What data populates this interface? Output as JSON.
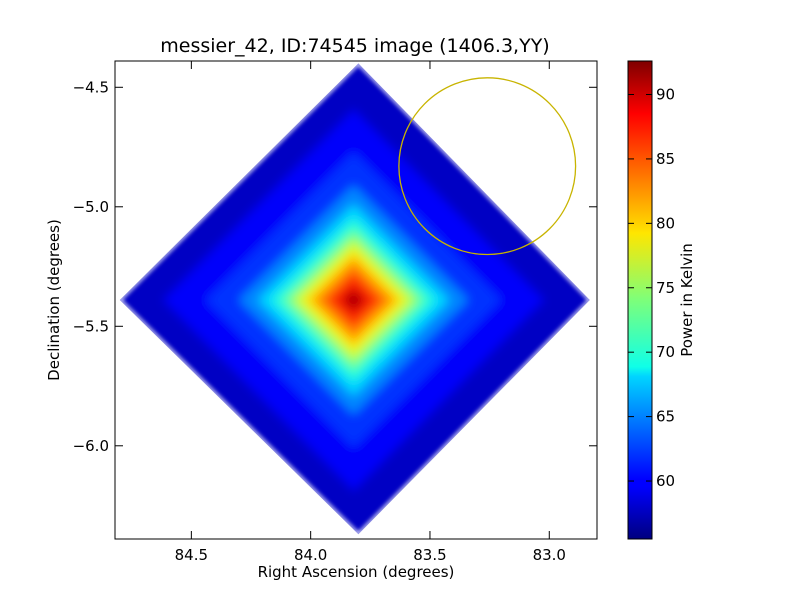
{
  "chart_data": {
    "type": "heatmap",
    "title": "messier_42, ID:74545 image (1406.3,YY)",
    "xlabel": "Right Ascension (degrees)",
    "ylabel": "Declination (degrees)",
    "xlim": [
      84.82,
      82.8
    ],
    "ylim": [
      -6.39,
      -4.39
    ],
    "x_ticks": [
      84.5,
      84.0,
      83.5,
      83.0
    ],
    "x_tick_labels": [
      "84.5",
      "84.0",
      "83.5",
      "83.0"
    ],
    "y_ticks": [
      -4.5,
      -5.0,
      -5.5,
      -6.0
    ],
    "y_tick_labels": [
      "−4.5",
      "−5.0",
      "−5.5",
      "−6.0"
    ],
    "colormap": "jet",
    "colorbar": {
      "label": "Power in Kelvin",
      "range": [
        55.5,
        92.6
      ],
      "ticks": [
        60,
        65,
        70,
        75,
        80,
        85,
        90
      ],
      "tick_labels": [
        "60",
        "65",
        "70",
        "75",
        "80",
        "85",
        "90"
      ]
    },
    "map": {
      "peak_ra": 83.82,
      "peak_dec": -5.39,
      "peak_value": 92,
      "footprint": "diamond",
      "footprint_corners": [
        {
          "ra": 83.8,
          "dec": -4.4
        },
        {
          "ra": 82.83,
          "dec": -5.39
        },
        {
          "ra": 83.8,
          "dec": -6.37
        },
        {
          "ra": 84.8,
          "dec": -5.39
        }
      ]
    },
    "overlays": [
      {
        "type": "circle",
        "center_ra": 83.26,
        "center_dec": -4.83,
        "radius_deg": 0.37,
        "color": "#c8b400"
      }
    ],
    "grid": false
  }
}
